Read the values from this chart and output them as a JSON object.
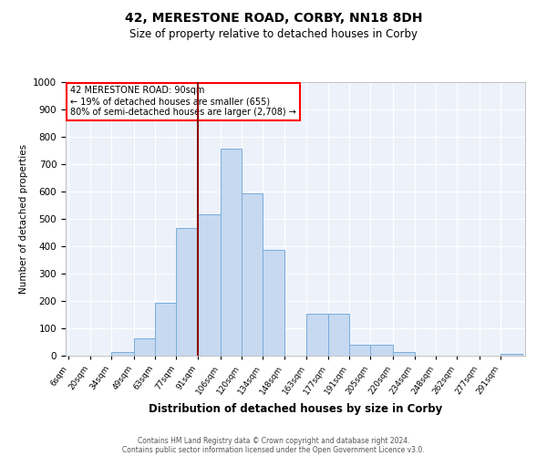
{
  "title": "42, MERESTONE ROAD, CORBY, NN18 8DH",
  "subtitle": "Size of property relative to detached houses in Corby",
  "xlabel": "Distribution of detached houses by size in Corby",
  "ylabel": "Number of detached properties",
  "footer_line1": "Contains HM Land Registry data © Crown copyright and database right 2024.",
  "footer_line2": "Contains public sector information licensed under the Open Government Licence v3.0.",
  "annotation_line1": "42 MERESTONE ROAD: 90sqm",
  "annotation_line2": "← 19% of detached houses are smaller (655)",
  "annotation_line3": "80% of semi-detached houses are larger (2,708) →",
  "bar_color": "#c6d9f0",
  "bar_edge_color": "#7aaddb",
  "background_color": "#edf2fa",
  "vline_color": "#8b0000",
  "vline_x": 91,
  "categories": [
    "6sqm",
    "20sqm",
    "34sqm",
    "49sqm",
    "63sqm",
    "77sqm",
    "91sqm",
    "106sqm",
    "120sqm",
    "134sqm",
    "148sqm",
    "163sqm",
    "177sqm",
    "191sqm",
    "205sqm",
    "220sqm",
    "234sqm",
    "248sqm",
    "262sqm",
    "277sqm",
    "291sqm"
  ],
  "bin_edges": [
    6,
    20,
    34,
    49,
    63,
    77,
    91,
    106,
    120,
    134,
    148,
    163,
    177,
    191,
    205,
    220,
    234,
    248,
    262,
    277,
    291,
    305
  ],
  "values": [
    0,
    0,
    13,
    62,
    193,
    468,
    517,
    757,
    595,
    387,
    0,
    155,
    155,
    40,
    40,
    13,
    0,
    0,
    0,
    0,
    8
  ],
  "ylim": [
    0,
    1000
  ],
  "yticks": [
    0,
    100,
    200,
    300,
    400,
    500,
    600,
    700,
    800,
    900,
    1000
  ]
}
